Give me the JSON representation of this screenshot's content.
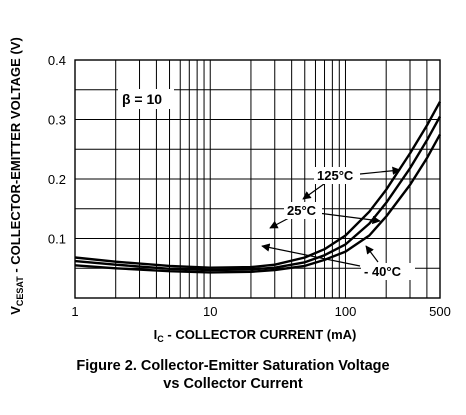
{
  "chart_data": {
    "type": "line",
    "x_scale": "log",
    "xlabel_main": "I",
    "xlabel_sub": "C",
    "xlabel_rest": " - COLLECTOR CURRENT  (mA)",
    "ylabel_main": "V",
    "ylabel_sub": "CESAT",
    "ylabel_rest": " - COLLECTOR-EMITTER VOLTAGE (V)",
    "xlim": [
      1,
      500
    ],
    "ylim": [
      0,
      0.4
    ],
    "x_ticks": [
      1,
      10,
      100,
      500
    ],
    "x_tick_labels": [
      "1",
      "10",
      "100",
      "500"
    ],
    "y_ticks": [
      0.1,
      0.2,
      0.3,
      0.4
    ],
    "y_tick_labels": [
      "0.1",
      "0.2",
      "0.3",
      "0.4"
    ],
    "grid": true,
    "annotation": "β = 10",
    "series": [
      {
        "name": "125°C",
        "x": [
          1,
          2,
          5,
          10,
          20,
          30,
          50,
          70,
          100,
          150,
          200,
          300,
          400,
          500
        ],
        "y": [
          0.068,
          0.061,
          0.054,
          0.051,
          0.052,
          0.056,
          0.068,
          0.082,
          0.105,
          0.145,
          0.182,
          0.243,
          0.29,
          0.33
        ]
      },
      {
        "name": "25°C",
        "x": [
          1,
          2,
          5,
          10,
          20,
          30,
          50,
          70,
          100,
          150,
          200,
          300,
          400,
          500
        ],
        "y": [
          0.062,
          0.056,
          0.049,
          0.047,
          0.048,
          0.051,
          0.06,
          0.072,
          0.09,
          0.125,
          0.16,
          0.218,
          0.265,
          0.305
        ]
      },
      {
        "name": "- 40°C",
        "x": [
          1,
          2,
          5,
          10,
          20,
          30,
          50,
          70,
          100,
          150,
          200,
          300,
          400,
          500
        ],
        "y": [
          0.055,
          0.05,
          0.045,
          0.043,
          0.044,
          0.047,
          0.054,
          0.064,
          0.078,
          0.105,
          0.137,
          0.19,
          0.235,
          0.275
        ]
      }
    ]
  },
  "caption": {
    "line1": "Figure 2. Collector-Emitter Saturation Voltage",
    "line2": "vs Collector Current"
  }
}
